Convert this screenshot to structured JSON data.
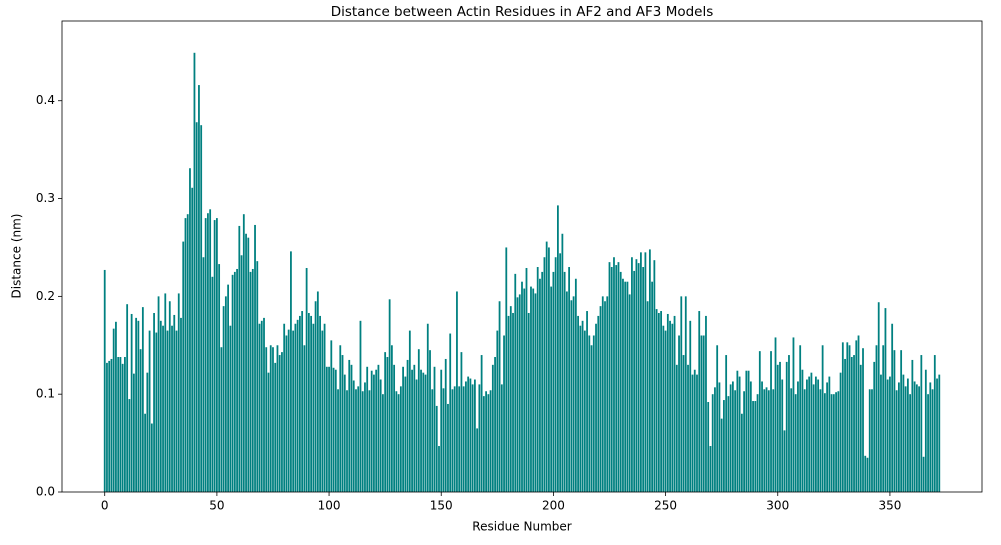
{
  "chart_data": {
    "type": "bar",
    "title": "Distance between Actin Residues in AF2 and AF3 Models",
    "x_label": "Residue Number",
    "y_label": "Distance (nm)",
    "color": "#008080",
    "xlim": [
      -19.04,
      391.04
    ],
    "ylim": [
      0,
      0.4815
    ],
    "xticks": [
      0,
      50,
      100,
      150,
      200,
      250,
      300,
      350
    ],
    "yticks": [
      {
        "value": 0,
        "label": "0.0"
      },
      0.1,
      0.2,
      0.3,
      0.4
    ],
    "x": [
      0,
      1,
      2,
      3,
      4,
      5,
      6,
      7,
      8,
      9,
      10,
      11,
      12,
      13,
      14,
      15,
      16,
      17,
      18,
      19,
      20,
      21,
      22,
      23,
      24,
      25,
      26,
      27,
      28,
      29,
      30,
      31,
      32,
      33,
      34,
      35,
      36,
      37,
      38,
      39,
      40,
      41,
      42,
      43,
      44,
      45,
      46,
      47,
      48,
      49,
      50,
      51,
      52,
      53,
      54,
      55,
      56,
      57,
      58,
      59,
      60,
      61,
      62,
      63,
      64,
      65,
      66,
      67,
      68,
      69,
      70,
      71,
      72,
      73,
      74,
      75,
      76,
      77,
      78,
      79,
      80,
      81,
      82,
      83,
      84,
      85,
      86,
      87,
      88,
      89,
      90,
      91,
      92,
      93,
      94,
      95,
      96,
      97,
      98,
      99,
      100,
      101,
      102,
      103,
      104,
      105,
      106,
      107,
      108,
      109,
      110,
      111,
      112,
      113,
      114,
      115,
      116,
      117,
      118,
      119,
      120,
      121,
      122,
      123,
      124,
      125,
      126,
      127,
      128,
      129,
      130,
      131,
      132,
      133,
      134,
      135,
      136,
      137,
      138,
      139,
      140,
      141,
      142,
      143,
      144,
      145,
      146,
      147,
      148,
      149,
      150,
      151,
      152,
      153,
      154,
      155,
      156,
      157,
      158,
      159,
      160,
      161,
      162,
      163,
      164,
      165,
      166,
      167,
      168,
      169,
      170,
      171,
      172,
      173,
      174,
      175,
      176,
      177,
      178,
      179,
      180,
      181,
      182,
      183,
      184,
      185,
      186,
      187,
      188,
      189,
      190,
      191,
      192,
      193,
      194,
      195,
      196,
      197,
      198,
      199,
      200,
      201,
      202,
      203,
      204,
      205,
      206,
      207,
      208,
      209,
      210,
      211,
      212,
      213,
      214,
      215,
      216,
      217,
      218,
      219,
      220,
      221,
      222,
      223,
      224,
      225,
      226,
      227,
      228,
      229,
      230,
      231,
      232,
      233,
      234,
      235,
      236,
      237,
      238,
      239,
      240,
      241,
      242,
      243,
      244,
      245,
      246,
      247,
      248,
      249,
      250,
      251,
      252,
      253,
      254,
      255,
      256,
      257,
      258,
      259,
      260,
      261,
      262,
      263,
      264,
      265,
      266,
      267,
      268,
      269,
      270,
      271,
      272,
      273,
      274,
      275,
      276,
      277,
      278,
      279,
      280,
      281,
      282,
      283,
      284,
      285,
      286,
      287,
      288,
      289,
      290,
      291,
      292,
      293,
      294,
      295,
      296,
      297,
      298,
      299,
      300,
      301,
      302,
      303,
      304,
      305,
      306,
      307,
      308,
      309,
      310,
      311,
      312,
      313,
      314,
      315,
      316,
      317,
      318,
      319,
      320,
      321,
      322,
      323,
      324,
      325,
      326,
      327,
      328,
      329,
      330,
      331,
      332,
      333,
      334,
      335,
      336,
      337,
      338,
      339,
      340,
      341,
      342,
      343,
      344,
      345,
      346,
      347,
      348,
      349,
      350,
      351,
      352,
      353,
      354,
      355,
      356,
      357,
      358,
      359,
      360,
      361,
      362,
      363,
      364,
      365,
      366,
      367,
      368,
      369,
      370,
      371,
      372
    ],
    "values": [
      0.227,
      0.132,
      0.134,
      0.136,
      0.167,
      0.174,
      0.138,
      0.138,
      0.131,
      0.138,
      0.192,
      0.095,
      0.182,
      0.121,
      0.178,
      0.175,
      0.146,
      0.189,
      0.08,
      0.122,
      0.165,
      0.07,
      0.183,
      0.163,
      0.2,
      0.175,
      0.17,
      0.203,
      0.165,
      0.195,
      0.17,
      0.181,
      0.165,
      0.203,
      0.178,
      0.256,
      0.28,
      0.284,
      0.331,
      0.311,
      0.449,
      0.378,
      0.416,
      0.375,
      0.24,
      0.28,
      0.285,
      0.289,
      0.22,
      0.278,
      0.28,
      0.233,
      0.148,
      0.19,
      0.2,
      0.212,
      0.17,
      0.222,
      0.225,
      0.228,
      0.272,
      0.242,
      0.284,
      0.264,
      0.26,
      0.225,
      0.228,
      0.273,
      0.236,
      0.172,
      0.175,
      0.178,
      0.148,
      0.122,
      0.15,
      0.148,
      0.132,
      0.15,
      0.14,
      0.143,
      0.172,
      0.16,
      0.166,
      0.246,
      0.165,
      0.172,
      0.176,
      0.18,
      0.185,
      0.15,
      0.229,
      0.183,
      0.18,
      0.172,
      0.195,
      0.205,
      0.18,
      0.165,
      0.172,
      0.128,
      0.128,
      0.155,
      0.127,
      0.125,
      0.105,
      0.15,
      0.14,
      0.12,
      0.104,
      0.135,
      0.13,
      0.114,
      0.105,
      0.108,
      0.175,
      0.103,
      0.112,
      0.128,
      0.104,
      0.124,
      0.12,
      0.125,
      0.13,
      0.115,
      0.1,
      0.143,
      0.138,
      0.197,
      0.15,
      0.13,
      0.103,
      0.1,
      0.108,
      0.128,
      0.118,
      0.135,
      0.165,
      0.125,
      0.13,
      0.115,
      0.146,
      0.125,
      0.122,
      0.12,
      0.172,
      0.145,
      0.105,
      0.128,
      0.088,
      0.047,
      0.125,
      0.106,
      0.136,
      0.09,
      0.162,
      0.105,
      0.108,
      0.205,
      0.108,
      0.143,
      0.108,
      0.113,
      0.118,
      0.116,
      0.11,
      0.115,
      0.065,
      0.11,
      0.14,
      0.098,
      0.103,
      0.1,
      0.104,
      0.13,
      0.138,
      0.165,
      0.195,
      0.11,
      0.16,
      0.25,
      0.18,
      0.19,
      0.183,
      0.223,
      0.199,
      0.202,
      0.215,
      0.208,
      0.229,
      0.183,
      0.21,
      0.208,
      0.203,
      0.23,
      0.218,
      0.225,
      0.24,
      0.256,
      0.25,
      0.21,
      0.225,
      0.24,
      0.293,
      0.244,
      0.264,
      0.225,
      0.205,
      0.23,
      0.196,
      0.2,
      0.218,
      0.18,
      0.17,
      0.175,
      0.165,
      0.185,
      0.16,
      0.15,
      0.16,
      0.172,
      0.18,
      0.19,
      0.2,
      0.195,
      0.2,
      0.235,
      0.23,
      0.24,
      0.232,
      0.235,
      0.225,
      0.218,
      0.215,
      0.215,
      0.202,
      0.24,
      0.226,
      0.238,
      0.234,
      0.245,
      0.23,
      0.245,
      0.195,
      0.248,
      0.215,
      0.237,
      0.187,
      0.183,
      0.185,
      0.17,
      0.165,
      0.182,
      0.175,
      0.172,
      0.18,
      0.13,
      0.16,
      0.2,
      0.14,
      0.2,
      0.13,
      0.175,
      0.12,
      0.125,
      0.12,
      0.185,
      0.16,
      0.16,
      0.18,
      0.092,
      0.047,
      0.1,
      0.107,
      0.15,
      0.112,
      0.075,
      0.094,
      0.14,
      0.098,
      0.11,
      0.113,
      0.104,
      0.124,
      0.118,
      0.08,
      0.103,
      0.124,
      0.124,
      0.113,
      0.093,
      0.093,
      0.1,
      0.144,
      0.113,
      0.105,
      0.107,
      0.104,
      0.144,
      0.105,
      0.158,
      0.13,
      0.133,
      0.115,
      0.063,
      0.133,
      0.14,
      0.106,
      0.158,
      0.1,
      0.113,
      0.15,
      0.125,
      0.105,
      0.115,
      0.118,
      0.122,
      0.11,
      0.118,
      0.115,
      0.105,
      0.15,
      0.101,
      0.112,
      0.118,
      0.1,
      0.1,
      0.102,
      0.103,
      0.122,
      0.153,
      0.136,
      0.153,
      0.15,
      0.138,
      0.14,
      0.155,
      0.16,
      0.13,
      0.147,
      0.037,
      0.035,
      0.105,
      0.105,
      0.133,
      0.15,
      0.194,
      0.12,
      0.15,
      0.188,
      0.115,
      0.118,
      0.172,
      0.145,
      0.104,
      0.112,
      0.145,
      0.12,
      0.108,
      0.116,
      0.1,
      0.135,
      0.113,
      0.11,
      0.108,
      0.14,
      0.036,
      0.125,
      0.1,
      0.112,
      0.105,
      0.14,
      0.116,
      0.12
    ]
  }
}
